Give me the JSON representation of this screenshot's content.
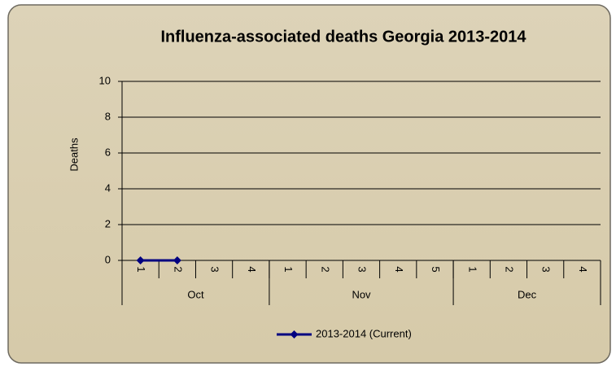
{
  "chart_data": {
    "type": "line",
    "title": "Influenza-associated deaths Georgia 2013-2014",
    "y_label": "Deaths",
    "categories": [
      "1",
      "2",
      "3",
      "4",
      "1",
      "2",
      "3",
      "4",
      "5",
      "1",
      "2",
      "3",
      "4"
    ],
    "groups": [
      {
        "label": "Oct",
        "size": 4
      },
      {
        "label": "Nov",
        "size": 5
      },
      {
        "label": "Dec",
        "size": 4
      }
    ],
    "series": [
      {
        "name": "2013-2014 (Current)",
        "color": "#000080",
        "values": [
          0,
          0,
          null,
          null,
          null,
          null,
          null,
          null,
          null,
          null,
          null,
          null,
          null
        ]
      }
    ],
    "ylim": [
      0,
      10
    ],
    "yticks": [
      0,
      2,
      4,
      6,
      8,
      10
    ],
    "grid": true,
    "legend": "bottom"
  }
}
